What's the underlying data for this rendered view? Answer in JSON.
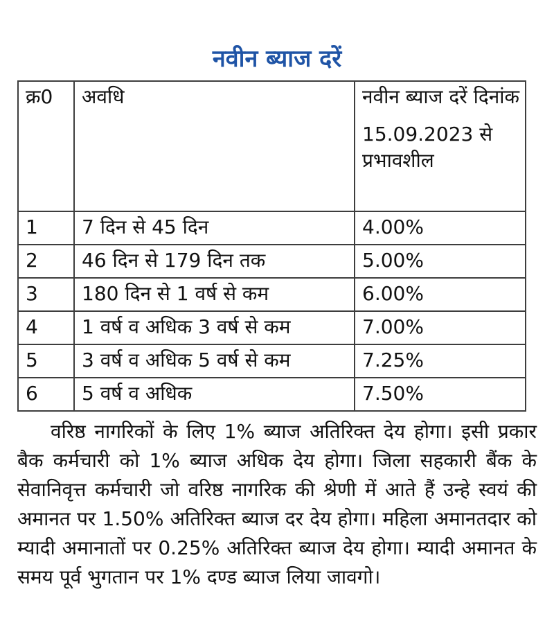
{
  "page": {
    "title": "नवीन ब्याज दरें",
    "accent_color": "#1F54A6"
  },
  "table": {
    "headers": {
      "sno": "क्र0",
      "period": "अवधि",
      "rate_line1": "नवीन ब्याज दरें दिनांक",
      "rate_line2": "15.09.2023 से प्रभावशील"
    },
    "rows": [
      {
        "sno": "1",
        "period": "7 दिन से 45 दिन",
        "rate": "4.00%"
      },
      {
        "sno": "2",
        "period": "46 दिन से 179 दिन तक",
        "rate": "5.00%"
      },
      {
        "sno": "3",
        "period": "180 दिन से 1 वर्ष से कम",
        "rate": "6.00%"
      },
      {
        "sno": "4",
        "period": "1 वर्ष व अधिक 3 वर्ष से कम",
        "rate": "7.00%"
      },
      {
        "sno": "5",
        "period": "3 वर्ष व अधिक 5 वर्ष से कम",
        "rate": "7.25%"
      },
      {
        "sno": "6",
        "period": "5 वर्ष व अधिक",
        "rate": "7.50%"
      }
    ]
  },
  "notes": {
    "paragraph": "वरिष्ठ नागरिकों के लिए 1% ब्याज अतिरिक्त देय होगा। इसी प्रकार बैक कर्मचारी को 1% ब्याज अधिक देय होगा। जिला सहकारी बैंक के सेवानिवृत्त कर्मचारी जो वरिष्ठ नागरिक की श्रेणी में आते हैं उन्हे स्वयं की अमानत पर 1.50% अतिरिक्त ब्याज दर देय होगा। महिला अमानतदार को म्यादी अमानातों पर 0.25% अतिरिक्त ब्याज देय होगा। म्यादी अमानत के समय पूर्व भुगतान पर 1% दण्ड ब्याज लिया जावगो।"
  }
}
